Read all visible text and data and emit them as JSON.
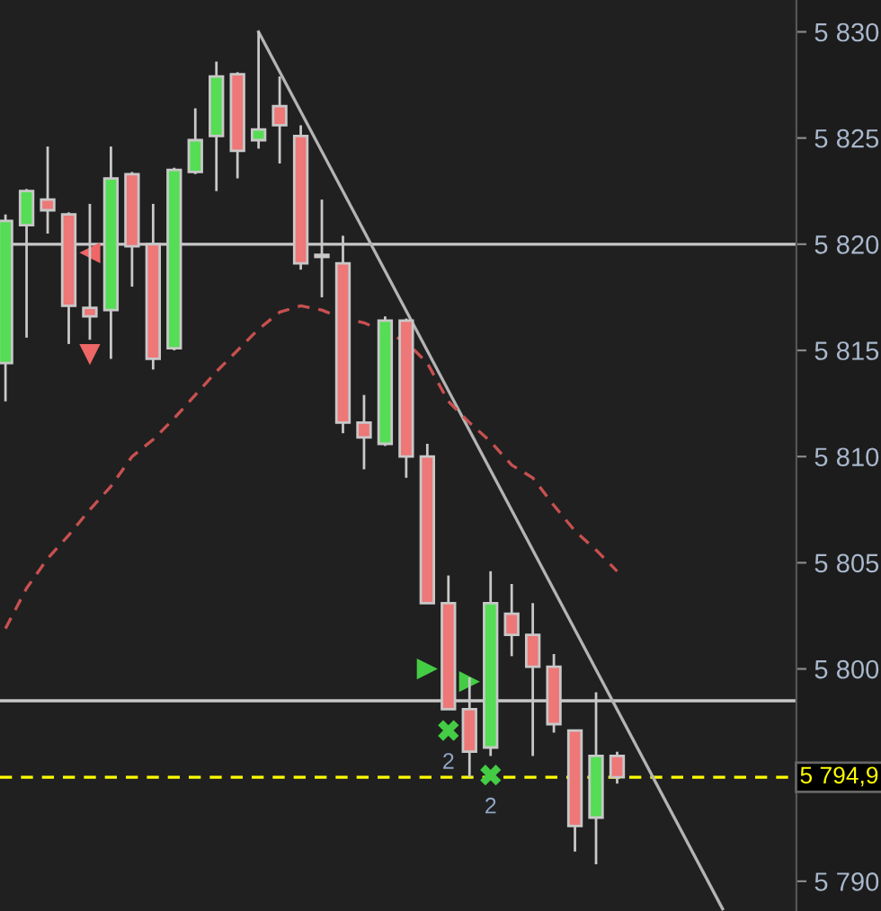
{
  "chart_data": {
    "type": "candlestick",
    "categories": [
      null,
      null,
      null,
      null,
      null,
      null,
      null,
      null,
      null,
      null,
      null,
      null,
      null,
      null,
      null,
      null,
      null,
      null,
      null,
      null,
      null,
      null,
      null,
      null,
      null,
      null,
      null,
      null,
      null,
      null,
      null,
      null,
      null,
      null,
      null,
      null,
      null,
      null
    ],
    "ohlc": [
      [
        5814.4,
        5821.4,
        5812.6,
        5821.1
      ],
      [
        5820.9,
        5822.6,
        5815.6,
        5822.5
      ],
      [
        5822.1,
        5824.6,
        5820.5,
        5821.6
      ],
      [
        5821.4,
        5821.5,
        5815.3,
        5817.1
      ],
      [
        5817.0,
        5821.9,
        5815.5,
        5816.6
      ],
      [
        5816.9,
        5824.6,
        5814.6,
        5823.1
      ],
      [
        5823.3,
        5823.4,
        5818.0,
        5819.9
      ],
      [
        5820.0,
        5821.9,
        5814.1,
        5814.6
      ],
      [
        5815.1,
        5823.6,
        5815.0,
        5823.5
      ],
      [
        5823.4,
        5826.4,
        5823.3,
        5824.9
      ],
      [
        5825.1,
        5828.6,
        5822.5,
        5827.9
      ],
      [
        5828.0,
        5828.1,
        5823.1,
        5824.4
      ],
      [
        5824.9,
        5830.0,
        5824.5,
        5825.4
      ],
      [
        5826.5,
        5827.9,
        5823.8,
        5825.6
      ],
      [
        5825.1,
        5825.6,
        5818.8,
        5819.1
      ],
      [
        5819.5,
        5822.1,
        5817.5,
        5819.4
      ],
      [
        5819.1,
        5820.4,
        5811.1,
        5811.6
      ],
      [
        5811.6,
        5812.9,
        5809.4,
        5810.9
      ],
      [
        5810.6,
        5816.6,
        5810.5,
        5816.4
      ],
      [
        5816.4,
        5816.5,
        5809.0,
        5810.0
      ],
      [
        5810.0,
        5810.6,
        5803.1,
        5803.1
      ],
      [
        5803.1,
        5804.4,
        5798.1,
        5798.1
      ],
      [
        5798.1,
        5799.6,
        5794.9,
        5796.1
      ],
      [
        5796.3,
        5804.6,
        5795.9,
        5803.1
      ],
      [
        5802.6,
        5804.0,
        5800.6,
        5801.6
      ],
      [
        5801.6,
        5803.1,
        5795.9,
        5800.1
      ],
      [
        5800.1,
        5800.7,
        5797.0,
        5797.4
      ],
      [
        5797.1,
        5797.1,
        5791.4,
        5792.6
      ],
      [
        5793.0,
        5798.9,
        5790.8,
        5795.9
      ],
      [
        5795.9,
        5796.1,
        5794.6,
        5794.9
      ],
      null,
      null,
      null,
      null,
      null,
      null,
      null,
      null
    ],
    "colors": [
      "#55dd55",
      "#55dd55",
      "#ee7777",
      "#ee7777",
      "#ee7777",
      "#55dd55",
      "#ee7777",
      "#ee7777",
      "#55dd55",
      "#55dd55",
      "#55dd55",
      "#ee7777",
      "#55dd55",
      "#ee7777",
      "#ee7777",
      "#ee7777",
      "#ee7777",
      "#ee7777",
      "#55dd55",
      "#ee7777",
      "#ee7777",
      "#ee7777",
      "#ee7777",
      "#55dd55",
      "#ee7777",
      "#ee7777",
      "#ee7777",
      "#ee7777",
      "#55dd55",
      "#ee7777",
      null,
      null,
      null,
      null,
      null,
      null,
      null,
      null
    ],
    "series": [
      {
        "type": "line",
        "color": "#b4b4b4",
        "values": [
          null,
          null,
          null,
          null,
          null,
          null,
          null,
          null,
          null,
          null,
          null,
          null,
          5830.0,
          null,
          null,
          null,
          null,
          null,
          null,
          null,
          null,
          null,
          null,
          null,
          null,
          null,
          null,
          null,
          null,
          null,
          null,
          null,
          null,
          null,
          5788.7,
          null,
          null,
          null
        ]
      },
      {
        "type": "line",
        "color": "#c85050",
        "line_style": "dashed",
        "values": [
          5801.9,
          5803.8,
          5805.2,
          5806.3,
          5807.5,
          5808.6,
          5810.0,
          5810.8,
          5811.8,
          5812.9,
          5814.0,
          5815.0,
          5816.0,
          5816.8,
          5817.1,
          5816.9,
          5816.5,
          5816.3,
          null,
          5815.4,
          5814.4,
          5812.6,
          5811.6,
          5810.7,
          5809.6,
          5809.0,
          5807.7,
          5806.5,
          5805.6,
          5804.6,
          null,
          null,
          null,
          null,
          null,
          null,
          null,
          null
        ]
      },
      {
        "type": "scatter",
        "color": "#44cc44",
        "marker": "cross",
        "values": [
          null,
          null,
          null,
          null,
          null,
          null,
          null,
          null,
          null,
          null,
          null,
          null,
          null,
          null,
          null,
          null,
          null,
          null,
          null,
          null,
          null,
          5797.1,
          null,
          5795.0,
          null,
          null,
          null,
          null,
          null,
          null,
          null,
          null,
          null,
          null,
          null,
          null,
          null,
          null
        ]
      },
      {
        "type": "scatter",
        "color": "#44cc44",
        "marker": "triangle_right",
        "values": [
          null,
          null,
          null,
          null,
          null,
          null,
          null,
          null,
          null,
          null,
          null,
          null,
          null,
          null,
          null,
          null,
          null,
          null,
          null,
          null,
          5800.0,
          null,
          5799.4,
          null,
          null,
          null,
          null,
          null,
          null,
          null,
          null,
          null,
          null,
          null,
          null,
          null,
          null,
          null
        ]
      },
      {
        "type": "scatter",
        "color": "#ee6666",
        "marker": "triangle_left",
        "values": [
          null,
          null,
          null,
          null,
          5819.6,
          null,
          null,
          null,
          null,
          null,
          null,
          null,
          null,
          null,
          null,
          null,
          null,
          null,
          null,
          null,
          null,
          null,
          null,
          null,
          null,
          null,
          null,
          null,
          null,
          null,
          null,
          null,
          null,
          null,
          null,
          null,
          null,
          null
        ]
      },
      {
        "type": "scatter",
        "color": "#ee6666",
        "marker": "triangle_down",
        "values": [
          null,
          null,
          null,
          null,
          5814.8,
          null,
          null,
          null,
          null,
          null,
          null,
          null,
          null,
          null,
          null,
          null,
          null,
          null,
          null,
          null,
          null,
          null,
          null,
          null,
          null,
          null,
          null,
          null,
          null,
          null,
          null,
          null,
          null,
          null,
          null,
          null,
          null,
          null
        ]
      }
    ],
    "annotations": [
      "2",
      "2"
    ],
    "ref_lines": [
      {
        "axis": "y",
        "value": 5820,
        "color": "#c8c8c8",
        "line_style": "solid"
      },
      {
        "axis": "y",
        "value": 5798.5,
        "color": "#c8c8c8",
        "line_style": "solid"
      },
      {
        "axis": "y",
        "value": 5794.9,
        "label": "5 794,9",
        "color": "#ffff00",
        "line_style": "dashed"
      }
    ],
    "ylim": [
      5788.6,
      5831.5
    ],
    "yticks": [
      {
        "value": 5790,
        "label": "5 790"
      },
      {
        "value": 5795,
        "label": null
      },
      {
        "value": 5800,
        "label": "5 800"
      },
      {
        "value": 5805,
        "label": "5 805"
      },
      {
        "value": 5810,
        "label": "5 810"
      },
      {
        "value": 5815,
        "label": "5 815"
      },
      {
        "value": 5820,
        "label": "5 820"
      },
      {
        "value": 5825,
        "label": "5 825"
      },
      {
        "value": 5830,
        "label": "5 830"
      }
    ],
    "tick_labels": "y",
    "grid": false,
    "legend": false
  }
}
